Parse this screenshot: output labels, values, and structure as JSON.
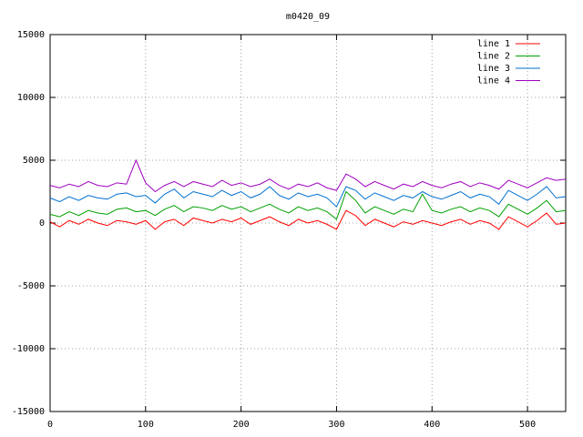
{
  "chart_data": {
    "type": "line",
    "title": "m0420_09",
    "x": [
      0,
      10,
      20,
      30,
      40,
      50,
      60,
      70,
      80,
      90,
      100,
      110,
      120,
      130,
      140,
      150,
      160,
      170,
      180,
      190,
      200,
      210,
      220,
      230,
      240,
      250,
      260,
      270,
      280,
      290,
      300,
      310,
      320,
      330,
      340,
      350,
      360,
      370,
      380,
      390,
      400,
      410,
      420,
      430,
      440,
      450,
      460,
      470,
      480,
      490,
      500,
      510,
      520,
      530,
      540
    ],
    "series": [
      {
        "name": "line 1",
        "color": "#ff0000",
        "values": [
          100,
          -300,
          200,
          -100,
          300,
          0,
          -200,
          200,
          100,
          -100,
          200,
          -500,
          100,
          300,
          -200,
          400,
          200,
          0,
          300,
          100,
          400,
          -100,
          200,
          500,
          100,
          -200,
          300,
          0,
          200,
          -100,
          -500,
          1000,
          600,
          -200,
          300,
          0,
          -300,
          100,
          -100,
          200,
          0,
          -200,
          100,
          300,
          -100,
          200,
          0,
          -500,
          500,
          100,
          -300,
          200,
          800,
          -100,
          0
        ]
      },
      {
        "name": "line 2",
        "color": "#00a000",
        "values": [
          700,
          500,
          900,
          600,
          1000,
          800,
          700,
          1100,
          1200,
          900,
          1000,
          600,
          1100,
          1400,
          900,
          1300,
          1200,
          1000,
          1400,
          1100,
          1300,
          900,
          1200,
          1500,
          1100,
          800,
          1300,
          1000,
          1200,
          900,
          300,
          2500,
          1800,
          800,
          1300,
          1000,
          700,
          1100,
          900,
          2300,
          1000,
          800,
          1100,
          1300,
          900,
          1200,
          1000,
          500,
          1500,
          1100,
          700,
          1200,
          1800,
          900,
          1000
        ]
      },
      {
        "name": "line 3",
        "color": "#0070d0",
        "values": [
          2000,
          1700,
          2100,
          1800,
          2200,
          2000,
          1900,
          2300,
          2400,
          2100,
          2200,
          1600,
          2300,
          2700,
          2000,
          2500,
          2300,
          2100,
          2600,
          2200,
          2500,
          2000,
          2300,
          2900,
          2200,
          1900,
          2400,
          2100,
          2300,
          2000,
          1300,
          2900,
          2600,
          1900,
          2400,
          2100,
          1800,
          2200,
          2000,
          2500,
          2100,
          1900,
          2200,
          2500,
          2000,
          2300,
          2100,
          1500,
          2600,
          2200,
          1800,
          2300,
          2900,
          2000,
          2100
        ]
      },
      {
        "name": "line 4",
        "color": "#a000c0",
        "values": [
          3000,
          2800,
          3100,
          2900,
          3300,
          3000,
          2900,
          3200,
          3100,
          5000,
          3200,
          2500,
          3000,
          3300,
          2900,
          3300,
          3100,
          2900,
          3400,
          3000,
          3200,
          2900,
          3100,
          3500,
          3000,
          2700,
          3100,
          2900,
          3200,
          2800,
          2600,
          3900,
          3500,
          2900,
          3300,
          3000,
          2700,
          3100,
          2900,
          3300,
          3000,
          2800,
          3100,
          3300,
          2900,
          3200,
          3000,
          2700,
          3400,
          3100,
          2800,
          3200,
          3600,
          3400,
          3500
        ]
      }
    ],
    "xlim": [
      0,
      540
    ],
    "xticks": [
      0,
      100,
      200,
      300,
      400,
      500
    ],
    "ylim": [
      -15000,
      15000
    ],
    "yticks": [
      -15000,
      -10000,
      -5000,
      0,
      5000,
      10000,
      15000
    ],
    "grid": true,
    "legend": "top-right"
  }
}
